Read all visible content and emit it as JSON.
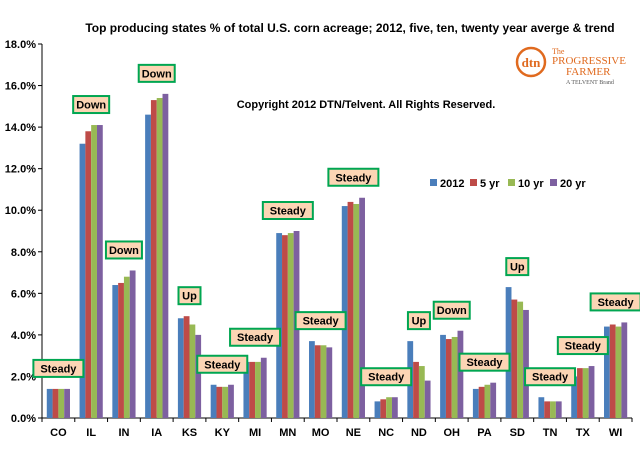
{
  "chart_data": {
    "type": "bar",
    "title": "Top producing states % of total U.S. corn acreage; 2012, five, ten, twenty year averge & trend",
    "copyright": "Copyright 2012 DTN/Telvent. All Rights Reserved.",
    "categories": [
      "CO",
      "IL",
      "IN",
      "IA",
      "KS",
      "KY",
      "MI",
      "MN",
      "MO",
      "NE",
      "NC",
      "ND",
      "OH",
      "PA",
      "SD",
      "TN",
      "TX",
      "WI"
    ],
    "series": [
      {
        "name": "2012",
        "color": "#4a7ebb",
        "values": [
          1.4,
          13.2,
          6.4,
          14.6,
          4.8,
          1.6,
          2.7,
          8.9,
          3.7,
          10.2,
          0.8,
          3.7,
          4.0,
          1.4,
          6.3,
          1.0,
          2.0,
          4.4
        ]
      },
      {
        "name": "5 yr",
        "color": "#be4b48",
        "values": [
          1.4,
          13.8,
          6.5,
          15.3,
          4.9,
          1.5,
          2.7,
          8.8,
          3.5,
          10.4,
          0.9,
          2.7,
          3.8,
          1.5,
          5.7,
          0.8,
          2.4,
          4.5
        ]
      },
      {
        "name": "10 yr",
        "color": "#98b954",
        "values": [
          1.4,
          14.1,
          6.8,
          15.4,
          4.5,
          1.5,
          2.7,
          8.9,
          3.5,
          10.3,
          1.0,
          2.5,
          3.9,
          1.6,
          5.6,
          0.8,
          2.4,
          4.4
        ]
      },
      {
        "name": "20 yr",
        "color": "#7d60a0",
        "values": [
          1.4,
          14.1,
          7.1,
          15.6,
          4.0,
          1.6,
          2.9,
          9.0,
          3.4,
          10.6,
          1.0,
          1.8,
          4.2,
          1.7,
          5.2,
          0.8,
          2.5,
          4.6
        ]
      }
    ],
    "trends": [
      "Steady",
      "Down",
      "Down",
      "Down",
      "Up",
      "Steady",
      "Steady",
      "Steady",
      "Steady",
      "Steady",
      "Steady",
      "Up",
      "Down",
      "Steady",
      "Up",
      "Steady",
      "Steady",
      "Steady"
    ],
    "y_ticks": [
      "0.0%",
      "2.0%",
      "4.0%",
      "6.0%",
      "8.0%",
      "10.0%",
      "12.0%",
      "14.0%",
      "16.0%",
      "18.0%"
    ],
    "ylim": [
      0,
      18
    ],
    "legend_position": "right",
    "grid": false,
    "trend_box_colors": {
      "fill": "#fcd5b4",
      "border": "#00a651"
    }
  },
  "logo": {
    "mark": "dtn",
    "line1": "The",
    "line2": "PROGRESSIVE",
    "line3": "FARMER",
    "line4": "A TELVENT Brand",
    "color": "#e06a1f"
  }
}
